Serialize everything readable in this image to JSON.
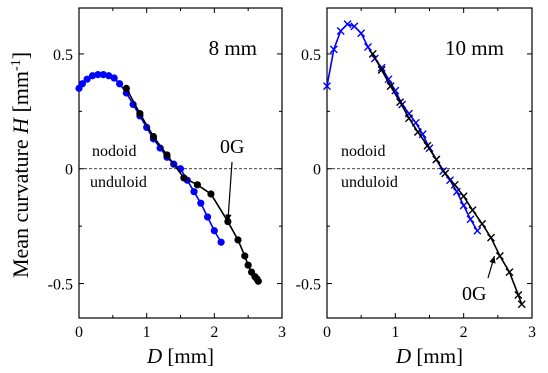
{
  "figure": {
    "ylabel_prefix": "Mean curvature ",
    "ylabel_var": "H",
    "ylabel_suffix": " [mm",
    "ylabel_exp": "-1",
    "ylabel_close": "]",
    "xlabel_var": "D",
    "xlabel_unit": " [mm]"
  },
  "chart_data": [
    {
      "type": "line",
      "panel_label": "8 mm",
      "xlim": [
        0,
        3
      ],
      "ylim": [
        -0.65,
        0.7
      ],
      "xticks": [
        0,
        1,
        2,
        3
      ],
      "yticks": [
        -0.5,
        0,
        0.5
      ],
      "ytick_labels": [
        "-0.5",
        "0",
        "0.5"
      ],
      "zero_line": "dashed",
      "region_labels": {
        "above": "nodoid",
        "below": "unduloid"
      },
      "annotation": {
        "text": "0G",
        "points_to": {
          "x": 2.2,
          "y": -0.23
        }
      },
      "series": [
        {
          "color": "#0000ff",
          "marker": "circle",
          "x": [
            0.0,
            0.05,
            0.12,
            0.2,
            0.28,
            0.36,
            0.44,
            0.52,
            0.6,
            0.7,
            0.8,
            0.9,
            1.0,
            1.1,
            1.2,
            1.3,
            1.4,
            1.5,
            1.6,
            1.7,
            1.8,
            1.9,
            2.0,
            2.1
          ],
          "y": [
            0.35,
            0.37,
            0.39,
            0.405,
            0.41,
            0.41,
            0.405,
            0.395,
            0.37,
            0.33,
            0.28,
            0.23,
            0.18,
            0.13,
            0.09,
            0.05,
            0.02,
            0.0,
            -0.05,
            -0.1,
            -0.15,
            -0.21,
            -0.27,
            -0.32
          ]
        },
        {
          "color": "#000000",
          "marker": "circle",
          "x": [
            0.7,
            0.9,
            1.1,
            1.3,
            1.55,
            1.75,
            1.95,
            2.2,
            2.35,
            2.45,
            2.5,
            2.55,
            2.6,
            2.63,
            2.65
          ],
          "y": [
            0.35,
            0.24,
            0.14,
            0.06,
            -0.04,
            -0.07,
            -0.11,
            -0.23,
            -0.31,
            -0.38,
            -0.42,
            -0.45,
            -0.47,
            -0.48,
            -0.49
          ]
        }
      ]
    },
    {
      "type": "line",
      "panel_label": "10 mm",
      "xlim": [
        0,
        3
      ],
      "ylim": [
        -0.65,
        0.7
      ],
      "xticks": [
        0,
        1,
        2,
        3
      ],
      "yticks": [
        -0.5,
        0,
        0.5
      ],
      "ytick_labels": [
        "-0.5",
        "0",
        "0.5"
      ],
      "zero_line": "dashed",
      "region_labels": {
        "above": "nodoid",
        "below": "unduloid"
      },
      "annotation": {
        "text": "0G",
        "points_to": {
          "x": 2.45,
          "y": -0.38
        }
      },
      "series": [
        {
          "color": "#0000ff",
          "marker": "x",
          "x": [
            0.0,
            0.1,
            0.2,
            0.3,
            0.4,
            0.5,
            0.6,
            0.7,
            0.8,
            0.9,
            1.0,
            1.1,
            1.2,
            1.3,
            1.4,
            1.5,
            1.6,
            1.7,
            1.8,
            1.9,
            2.0,
            2.1,
            2.2
          ],
          "y": [
            0.36,
            0.52,
            0.6,
            0.63,
            0.62,
            0.59,
            0.53,
            0.48,
            0.44,
            0.39,
            0.34,
            0.28,
            0.24,
            0.2,
            0.15,
            0.09,
            0.04,
            -0.01,
            -0.05,
            -0.1,
            -0.16,
            -0.22,
            -0.27
          ]
        },
        {
          "color": "#000000",
          "marker": "x",
          "x": [
            0.67,
            0.8,
            0.93,
            1.07,
            1.2,
            1.33,
            1.47,
            1.6,
            1.73,
            1.87,
            2.0,
            2.13,
            2.27,
            2.4,
            2.53,
            2.67,
            2.8,
            2.85
          ],
          "y": [
            0.5,
            0.43,
            0.36,
            0.29,
            0.22,
            0.16,
            0.1,
            0.04,
            -0.02,
            -0.07,
            -0.12,
            -0.18,
            -0.24,
            -0.3,
            -0.38,
            -0.45,
            -0.55,
            -0.59
          ]
        }
      ]
    }
  ]
}
